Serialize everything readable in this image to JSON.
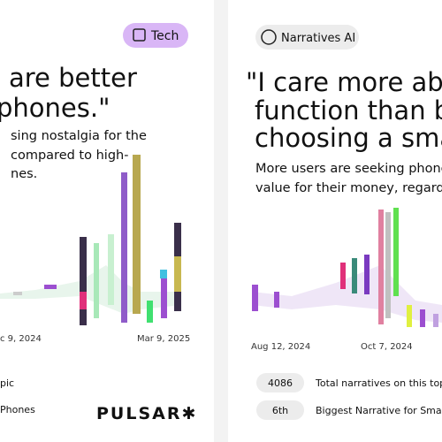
{
  "left": {
    "tag": "Tech",
    "quote_lines": [
      "are better",
      "phones.\""
    ],
    "subtitle_lines": [
      "sing nostalgia for the",
      "compared to high-",
      "nes."
    ],
    "axis_labels": [
      "c 9, 2024",
      "Mar 9, 2025"
    ],
    "footer_lines": [
      "pic",
      "Phones"
    ],
    "brand": "PULSAR✱"
  },
  "right": {
    "tag": "Narratives AI",
    "quote_lines": [
      "\"I care more abo",
      "function than b",
      "choosing a sma"
    ],
    "subtitle_lines": [
      "More users are seeking phone",
      "value for their money, regardle"
    ],
    "axis_labels": [
      "Aug 12, 2024",
      "Oct 7, 2024"
    ],
    "stats": [
      {
        "value": "4086",
        "label": "Total narratives on this topic"
      },
      {
        "value": "6th",
        "label": "Biggest Narrative for Smartphon"
      }
    ]
  }
}
